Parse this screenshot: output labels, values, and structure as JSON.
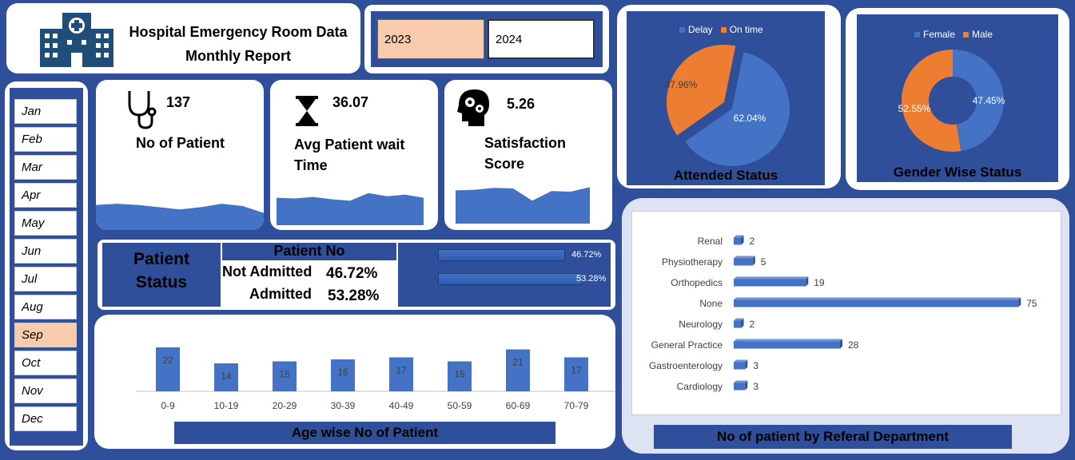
{
  "header": {
    "title_line1": "Hospital Emergency Room Data",
    "title_line2": "Monthly Report",
    "icon": "hospital-building-icon"
  },
  "year_slicer": {
    "options": [
      "2023",
      "2024"
    ],
    "selected": "2023"
  },
  "month_slicer": {
    "options": [
      "Jan",
      "Feb",
      "Mar",
      "Apr",
      "May",
      "Jun",
      "Jul",
      "Aug",
      "Sep",
      "Oct",
      "Nov",
      "Dec"
    ],
    "selected": "Sep"
  },
  "kpis": {
    "patients": {
      "value": "137",
      "label": "No of Patient",
      "icon": "stethoscope-icon",
      "trend": [
        22,
        23,
        22,
        20,
        18,
        20,
        23,
        21,
        15
      ]
    },
    "wait_time": {
      "value": "36.07",
      "label_line1": "Avg Patient wait",
      "label_line2": "Time",
      "icon": "hourglass-icon",
      "trend": [
        36,
        35,
        37,
        34,
        32,
        42,
        38,
        40,
        36
      ]
    },
    "satisfaction": {
      "value": "5.26",
      "label_line1": "Satisfaction",
      "label_line2": "Score",
      "icon": "brain-gears-icon",
      "trend": [
        5.2,
        5.3,
        5.6,
        5.5,
        3.6,
        5.1,
        5.0,
        5.7
      ]
    }
  },
  "patient_status": {
    "title_line1": "Patient",
    "title_line2": "Status",
    "header": "Patient No",
    "rows": [
      {
        "label": "Not Admitted",
        "value": "46.72%",
        "pct": 46.72
      },
      {
        "label": "Admitted",
        "value": "53.28%",
        "pct": 53.28
      }
    ]
  },
  "colors": {
    "accent": "#2f4f9a",
    "bar_blue": "#4472c4",
    "orange": "#ed7d31",
    "highlight": "#f8cbad"
  },
  "chart_data": [
    {
      "type": "bar",
      "title": "Age wise No of Patient",
      "categories": [
        "0-9",
        "10-19",
        "20-29",
        "30-39",
        "40-49",
        "50-59",
        "60-69",
        "70-79"
      ],
      "values": [
        22,
        14,
        15,
        16,
        17,
        15,
        21,
        17
      ],
      "ylim": [
        0,
        25
      ]
    },
    {
      "type": "pie",
      "title": "Attended Status",
      "legend": [
        "Delay",
        "On time"
      ],
      "values": [
        62.04,
        37.96
      ],
      "labels": [
        "62.04%",
        "37.96%"
      ],
      "colors": [
        "#4472c4",
        "#ed7d31"
      ]
    },
    {
      "type": "pie",
      "title": "Gender Wise Status",
      "legend": [
        "Female",
        "Male"
      ],
      "values": [
        47.45,
        52.55
      ],
      "labels": [
        "47.45%",
        "52.55%"
      ],
      "colors": [
        "#4472c4",
        "#ed7d31"
      ]
    },
    {
      "type": "bar",
      "title": "No of patient by Referal Department",
      "categories": [
        "Renal",
        "Physiotherapy",
        "Orthopedics",
        "None",
        "Neurology",
        "General Practice",
        "Gastroenterology",
        "Cardiology"
      ],
      "values": [
        2,
        5,
        19,
        75,
        2,
        28,
        3,
        3
      ],
      "xlim": [
        0,
        80
      ]
    }
  ]
}
